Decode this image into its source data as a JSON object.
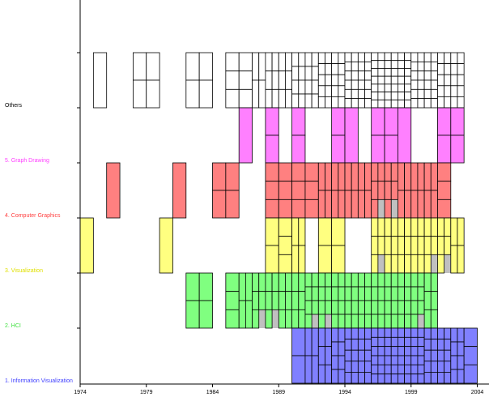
{
  "chart_data": {
    "type": "bar",
    "title": "",
    "xlabel": "",
    "ylabel": "",
    "x_ticks": [
      "1974",
      "1979",
      "1984",
      "1989",
      "1994",
      "1999",
      "2004"
    ],
    "x_range": [
      1974,
      2004
    ],
    "grid": false,
    "legend": "none",
    "colors": {
      "others": "#ffffff",
      "graph_drawing": "#ff80ff",
      "computer_graphics": "#ff8080",
      "visualization": "#ffff80",
      "hci": "#80ff80",
      "information_visualization": "#8080ff",
      "filler": "#c0c0c0",
      "outline": "#000000"
    },
    "series": [
      {
        "name": "Others",
        "color": "#ffffff",
        "label_color": "#000000",
        "years": [
          1975,
          1978,
          1979,
          1982,
          1983,
          1985,
          1986,
          1987,
          1988,
          1989,
          1990,
          1991,
          1992,
          1993,
          1994,
          1995,
          1996,
          1997,
          1998,
          1999,
          2000,
          2001,
          2002
        ],
        "counts": [
          1,
          2,
          2,
          2,
          2,
          3,
          3,
          4,
          6,
          6,
          8,
          8,
          10,
          10,
          12,
          12,
          14,
          14,
          14,
          12,
          12,
          10,
          10
        ]
      },
      {
        "name": "5. Graph Drawing",
        "color": "#ff80ff",
        "label_color": "#ff40ff",
        "years": [
          1986,
          1988,
          1990,
          1993,
          1994,
          1996,
          1997,
          1998,
          2001,
          2002
        ],
        "counts": [
          1,
          2,
          2,
          2,
          1,
          2,
          2,
          1,
          2,
          2
        ]
      },
      {
        "name": "4. Computer Graphics",
        "color": "#ff8080",
        "label_color": "#ff4040",
        "years": [
          1976,
          1981,
          1984,
          1985,
          1988,
          1989,
          1990,
          1991,
          1992,
          1993,
          1994,
          1995,
          1996,
          1997,
          1998,
          1999,
          2000,
          2001
        ],
        "counts": [
          1,
          1,
          2,
          2,
          3,
          3,
          3,
          3,
          4,
          4,
          4,
          4,
          5,
          5,
          4,
          4,
          4,
          3
        ]
      },
      {
        "name": "3. Visualization",
        "color": "#ffff80",
        "label_color": "#e0e000",
        "years": [
          1974,
          1980,
          1988,
          1989,
          1990,
          1992,
          1993,
          1996,
          1997,
          1998,
          1999,
          2000,
          2001,
          2002
        ],
        "counts": [
          1,
          1,
          2,
          3,
          4,
          2,
          2,
          5,
          6,
          6,
          6,
          5,
          5,
          4
        ]
      },
      {
        "name": "2. HCI",
        "color": "#80ff80",
        "label_color": "#40e040",
        "years": [
          1982,
          1983,
          1985,
          1986,
          1987,
          1988,
          1989,
          1990,
          1991,
          1992,
          1993,
          1994,
          1995,
          1996,
          1997,
          1998,
          1999,
          2000
        ],
        "counts": [
          2,
          2,
          3,
          4,
          5,
          5,
          6,
          6,
          7,
          7,
          8,
          8,
          8,
          8,
          8,
          8,
          7,
          6
        ]
      },
      {
        "name": "1. Information Visualization",
        "color": "#8080ff",
        "label_color": "#4040ff",
        "years": [
          1990,
          1991,
          1992,
          1993,
          1994,
          1995,
          1996,
          1997,
          1998,
          1999,
          2000,
          2001,
          2002,
          2003
        ],
        "counts": [
          2,
          4,
          6,
          8,
          10,
          10,
          12,
          12,
          12,
          12,
          10,
          10,
          8,
          3
        ]
      }
    ]
  }
}
